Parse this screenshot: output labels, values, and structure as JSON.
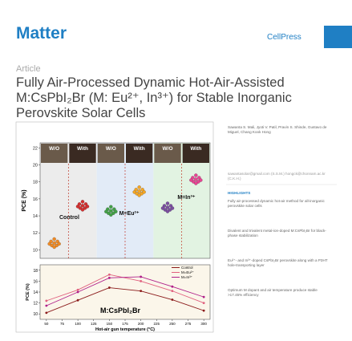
{
  "header": {
    "journal": "Matter",
    "publisher": "CellPress"
  },
  "article_type": "Article",
  "title_lines": [
    "Fully Air-Processed Dynamic Hot-Air-Assisted",
    "M:CsPbI₂Br (M: Eu²⁺, In³⁺) for Stable Inorganic",
    "Perovskite Solar Cells"
  ],
  "authors": "Sawanta S. Mali, Jyoti V. Patil, Pravin S. Shinde, Gustavo de Miguel, Chang Kook Hong",
  "emails": "sawantasolar@gmail.com (S.S.M.) hongck@chonnam.ac.kr (C.K.H.)",
  "highlights": {
    "heading": "HIGHLIGHTS",
    "items": [
      "Fully air-processed dynamic hot-air method for all-inorganic perovskite solar cells",
      "Divalent and trivalent metal-ion-doped M:CsPbI₂Br for black-phase stabilization",
      "Eu²⁺- and In³⁺-doped CsPbI₂Br perovskite along with a P3HT hole-transporting layer",
      "Optimum M dopant and air temperature produce stable >17.45% efficiency"
    ]
  },
  "figure": {
    "top": {
      "ylabel": "PCE (%)",
      "ylim": [
        9,
        22.6
      ],
      "yticks": [
        10,
        12,
        14,
        16,
        18,
        20,
        22
      ],
      "columns": [
        "W/O",
        "With",
        "W/O",
        "With",
        "W/O",
        "With"
      ],
      "groups": [
        "Control",
        "M=Eu²⁺",
        "M=In³⁺"
      ],
      "values": [
        10.8,
        15.2,
        14.6,
        16.9,
        15.0,
        18.3
      ],
      "colors": [
        "#f08a24",
        "#d32f2f",
        "#43a047",
        "#f5a623",
        "#7b4fa0",
        "#e84393"
      ]
    },
    "bottom": {
      "xlabel": "Hot-air gun temperature (°C)",
      "ylabel": "PCE (%)",
      "sample": "M:CsPbI₂Br",
      "xlim": [
        40,
        310
      ],
      "xticks": [
        50,
        75,
        100,
        125,
        150,
        175,
        200,
        225,
        250,
        275,
        300
      ],
      "ylim": [
        9,
        19
      ],
      "yticks": [
        10,
        12,
        14,
        16,
        18
      ],
      "x": [
        50,
        100,
        150,
        200,
        250,
        300
      ],
      "series": [
        {
          "name": "Control",
          "color": "#8b1a1a",
          "values": [
            10.2,
            12.5,
            14.8,
            14.2,
            12.6,
            10.6
          ]
        },
        {
          "name": "M=Eu²⁺",
          "color": "#e0607e",
          "values": [
            12.4,
            14.4,
            17.2,
            16.0,
            14.2,
            12.0
          ]
        },
        {
          "name": "M=In³⁺",
          "color": "#b0208a",
          "values": [
            11.5,
            14.0,
            16.6,
            16.8,
            15.0,
            13.1
          ]
        }
      ]
    }
  }
}
